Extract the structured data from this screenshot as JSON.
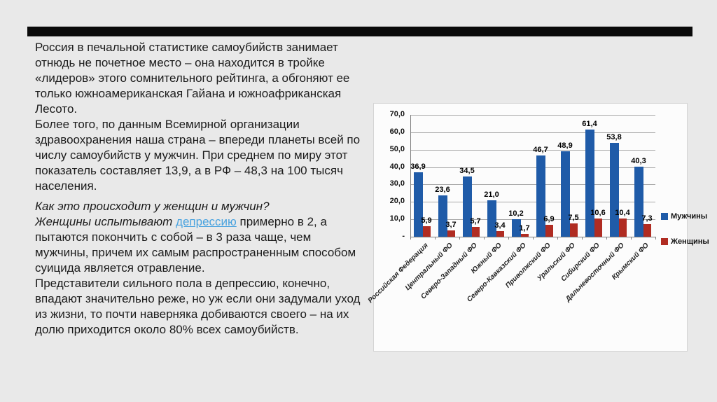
{
  "slide": {
    "background_color": "#e9e9e9",
    "divider_color": "#0a0a0a"
  },
  "text_block": {
    "para1": "Россия в печальной статистике самоубийств занимает отнюдь не почетное место – она находится в тройке «лидеров» этого сомнительного рейтинга, а обгоняют ее только южноамериканская Гайана и южноафриканская Лесото.",
    "para2": "Более того, по данным Всемирной организации здравоохранения наша страна – впереди планеты всей по числу самоубийств у мужчин. При среднем по миру этот показатель составляет 13,9, а в РФ – 48,3 на 100 тысяч населения.",
    "question": "Как это происходит у женщин и мужчин?",
    "para3_italic_lead": "Женщины испытывают ",
    "para3_link": "депрессию",
    "para3_rest": " примерно в 2, а пытаются покончить с собой – в 3 раза чаще, чем мужчины, причем их самым распространенным способом суицида является отравление.",
    "para4": "Представители сильного пола в депрессию, конечно, впадают значительно реже, но уж если они задумали уход из жизни, то почти наверняка добиваются своего – на их долю приходится около 80% всех самоубийств.",
    "link_color": "#4aa3df",
    "text_color": "#1b1b1b"
  },
  "chart_data": {
    "type": "bar",
    "title": "",
    "xlabel": "",
    "ylabel": "",
    "categories": [
      "Российская Федерация",
      "Центральный ФО",
      "Северо-Западный ФО",
      "Южный ФО",
      "Северо-Кавказский ФО",
      "Приволжский ФО",
      "Уральский ФО",
      "Сибирский ФО",
      "Дальневосточный ФО",
      "Крымский ФО"
    ],
    "series": [
      {
        "name": "Мужчины",
        "color": "#1f5ba8",
        "values": [
          36.9,
          23.6,
          34.5,
          21.0,
          10.2,
          46.7,
          48.9,
          61.4,
          53.8,
          40.3
        ],
        "labels": [
          "36,9",
          "23,6",
          "34,5",
          "21,0",
          "10,2",
          "46,7",
          "48,9",
          "61,4",
          "53,8",
          "40,3"
        ]
      },
      {
        "name": "Женщины",
        "color": "#b02c22",
        "values": [
          5.9,
          3.7,
          5.7,
          3.4,
          1.7,
          6.9,
          7.5,
          10.6,
          10.4,
          7.3
        ],
        "labels": [
          "5,9",
          "3,7",
          "5,7",
          "3,4",
          "1,7",
          "6,9",
          "7,5",
          "10,6",
          "10,4",
          "7,3"
        ]
      }
    ],
    "ylim": [
      0,
      70
    ],
    "ytick_step": 10,
    "ytick_labels": [
      "-",
      "10,0",
      "20,0",
      "30,0",
      "40,0",
      "50,0",
      "60,0",
      "70,0"
    ],
    "grid": true,
    "legend_position": "right",
    "axis_color": "#7f7f7f",
    "grid_color": "#a8a8a8"
  }
}
